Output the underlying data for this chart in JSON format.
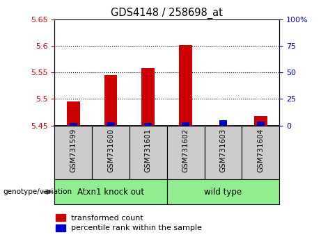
{
  "title": "GDS4148 / 258698_at",
  "samples": [
    "GSM731599",
    "GSM731600",
    "GSM731601",
    "GSM731602",
    "GSM731603",
    "GSM731604"
  ],
  "red_values": [
    5.495,
    5.545,
    5.558,
    5.602,
    5.451,
    5.468
  ],
  "blue_values": [
    2.5,
    3.0,
    2.0,
    3.0,
    5.0,
    3.5
  ],
  "baseline": 5.45,
  "ylim_left": [
    5.45,
    5.65
  ],
  "ylim_right": [
    0,
    100
  ],
  "yticks_left": [
    5.45,
    5.5,
    5.55,
    5.6,
    5.65
  ],
  "ytick_labels_left": [
    "5.45",
    "5.5",
    "5.55",
    "5.6",
    "5.65"
  ],
  "yticks_right": [
    0,
    25,
    50,
    75,
    100
  ],
  "ytick_labels_right": [
    "0",
    "25",
    "50",
    "75",
    "100%"
  ],
  "groups": [
    {
      "label": "Atxn1 knock out",
      "span": [
        0,
        3
      ],
      "color": "#90ee90"
    },
    {
      "label": "wild type",
      "span": [
        3,
        6
      ],
      "color": "#90ee90"
    }
  ],
  "bar_width": 0.35,
  "red_color": "#cc0000",
  "blue_color": "#0000cc",
  "sample_box_color": "#cccccc",
  "grid_color": "black",
  "legend_red_label": "transformed count",
  "legend_blue_label": "percentile rank within the sample",
  "genotype_label": "genotype/variation"
}
